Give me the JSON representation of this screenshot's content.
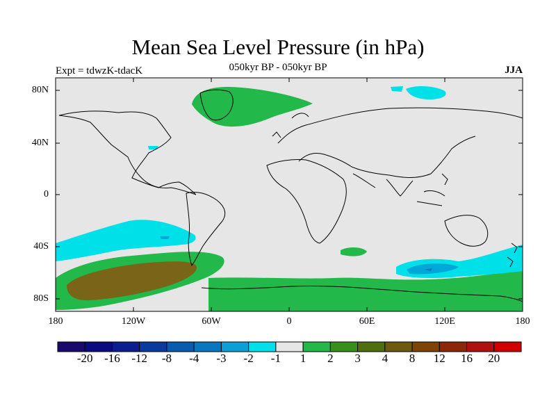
{
  "header": {
    "title": "Mean Sea Level Pressure (in hPa)",
    "subtitle": "050kyr BP - 050kyr BP",
    "left_label": "Expt = tdwzK-tdacK",
    "right_label": "JJA"
  },
  "axes": {
    "y_ticks": [
      "80N",
      "40N",
      "0",
      "40S",
      "80S"
    ],
    "x_ticks": [
      "180",
      "120W",
      "60W",
      "0",
      "60E",
      "120E",
      "180"
    ]
  },
  "colors": {
    "land_ocean_background": "#e6e6e6",
    "coastline": "#000000",
    "light_cyan": "#00e0e8",
    "medium_cyan": "#00a8d8",
    "green": "#22b84a",
    "olive_brown": "#7a6418"
  },
  "colorbar": {
    "labels": [
      "-20",
      "-16",
      "-12",
      "-8",
      "-4",
      "-3",
      "-2",
      "-1",
      "1",
      "2",
      "3",
      "4",
      "8",
      "12",
      "16",
      "20"
    ],
    "colors": [
      "#1a0a6b",
      "#0b0b80",
      "#0a1e8f",
      "#0a3a9e",
      "#0a5aae",
      "#0877c0",
      "#0aa0d6",
      "#00e0e8",
      "#e6e6e6",
      "#22b84a",
      "#3a8e1c",
      "#4f6e10",
      "#6d5a10",
      "#7d4408",
      "#8c2808",
      "#b01010",
      "#d00000"
    ]
  }
}
